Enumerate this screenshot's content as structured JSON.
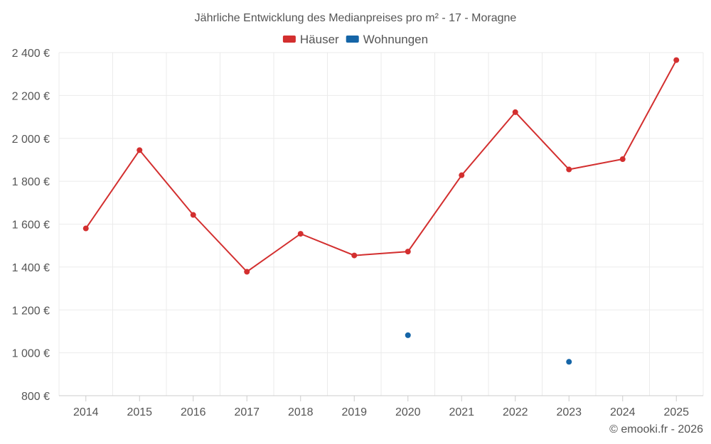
{
  "chart_data": {
    "type": "line",
    "title": "Jährliche Entwicklung des Medianpreises pro m² - 17 - Moragne",
    "categories": [
      "2014",
      "2015",
      "2016",
      "2017",
      "2018",
      "2019",
      "2020",
      "2021",
      "2022",
      "2023",
      "2024",
      "2025"
    ],
    "series": [
      {
        "name": "Häuser",
        "color": "#d32f2f",
        "values": [
          1580,
          1945,
          1643,
          1378,
          1555,
          1454,
          1472,
          1828,
          2122,
          1855,
          1903,
          2365
        ]
      },
      {
        "name": "Wohnungen",
        "color": "#1565a7",
        "values": [
          null,
          null,
          null,
          null,
          null,
          null,
          1082,
          null,
          null,
          958,
          null,
          null
        ]
      }
    ],
    "ylim": [
      800,
      2400
    ],
    "yticks": [
      800,
      1000,
      1200,
      1400,
      1600,
      1800,
      2000,
      2200,
      2400
    ],
    "ytick_labels": [
      "800 €",
      "1 000 €",
      "1 200 €",
      "1 400 €",
      "1 600 €",
      "1 800 €",
      "2 000 €",
      "2 200 €",
      "2 400 €"
    ],
    "grid": true,
    "legend_position": "top-center",
    "xlabel": "",
    "ylabel": ""
  },
  "credit": "© emooki.fr - 2026"
}
